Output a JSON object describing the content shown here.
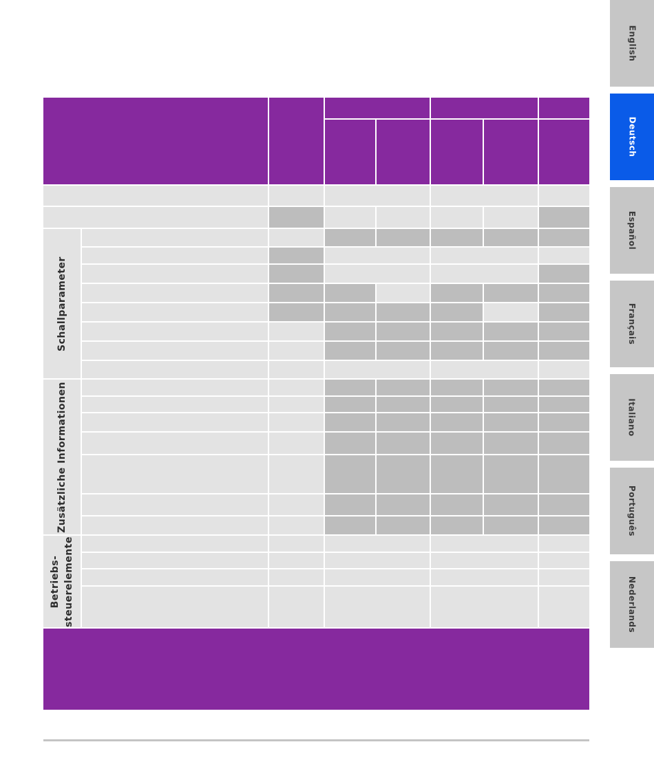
{
  "language_tabs": [
    {
      "label": "English",
      "active": false
    },
    {
      "label": "Deutsch",
      "active": true
    },
    {
      "label": "Español",
      "active": false
    },
    {
      "label": "Français",
      "active": false
    },
    {
      "label": "Italiano",
      "active": false
    },
    {
      "label": "Português",
      "active": false
    },
    {
      "label": "Nederlands",
      "active": false
    }
  ],
  "colors": {
    "header_purple": "#86299e",
    "active_tab_blue": "#0a5be8",
    "inactive_tab_grey": "#c6c6c6",
    "cell_light": "#e3e3e3",
    "cell_dark": "#bdbdbd"
  },
  "table": {
    "sections": [
      {
        "label": "Schallparameter"
      },
      {
        "label": "Zusätzliche Informationen"
      },
      {
        "label": "Betriebs-\nsteuerelemente"
      }
    ]
  }
}
